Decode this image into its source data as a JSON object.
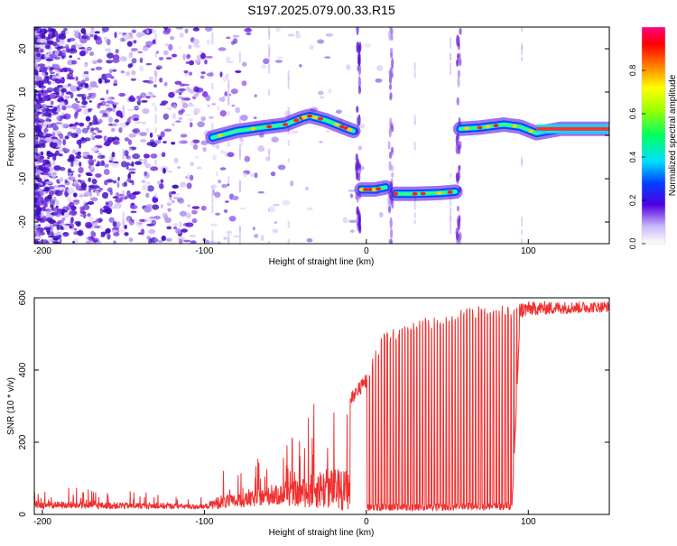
{
  "title": "S197.2025.079.00.33.R15",
  "colors": {
    "snr_line": "#f03030",
    "axis": "#000000",
    "noise_dots": "#7a2ee0"
  },
  "chart_data": [
    {
      "type": "heatmap",
      "xlabel": "Height of straight line (km)",
      "ylabel": "Frequency (Hz)",
      "xlim": [
        -205,
        150
      ],
      "ylim": [
        -25,
        25
      ],
      "x_ticks": [
        -200,
        -100,
        0,
        100
      ],
      "y_ticks": [
        -20,
        -10,
        0,
        10,
        20
      ],
      "colorbar": {
        "label": "Normalized spectral amplitude",
        "range": [
          0.0,
          1.0
        ],
        "ticks": [
          "0.0",
          "0.2",
          "0.4",
          "0.6",
          "0.8"
        ],
        "tick_values": [
          0.0,
          0.2,
          0.4,
          0.6,
          0.8
        ]
      },
      "ridge": {
        "segments": [
          {
            "x": [
              -95,
              -80,
              -65,
              -50,
              -40,
              -35,
              -25,
              -15,
              -8
            ],
            "y": [
              -0.5,
              1.0,
              1.8,
              2.5,
              4.0,
              4.5,
              3.5,
              2.0,
              1.0
            ]
          },
          {
            "x": [
              -3,
              5,
              12
            ],
            "y": [
              -12.5,
              -12.5,
              -12.0
            ]
          },
          {
            "x": [
              18,
              30,
              45,
              55
            ],
            "y": [
              -13.5,
              -13.5,
              -13.3,
              -13.0
            ]
          },
          {
            "x": [
              58,
              70,
              85,
              95,
              105,
              120,
              150
            ],
            "y": [
              1.5,
              1.8,
              2.5,
              2.0,
              0.5,
              1.5,
              1.5
            ]
          }
        ]
      }
    },
    {
      "type": "line",
      "xlabel": "Height of straight line (km)",
      "ylabel": "SNR (10 * v/v)",
      "xlim": [
        -205,
        150
      ],
      "ylim": [
        0,
        600
      ],
      "x_ticks": [
        -200,
        -100,
        0,
        100
      ],
      "y_ticks": [
        0,
        200,
        400,
        600
      ],
      "profile": {
        "x": [
          -205,
          -160,
          -120,
          -100,
          -90,
          -80,
          -70,
          -60,
          -50,
          -40,
          -30,
          -20,
          -10,
          0,
          10,
          20,
          30,
          40,
          50,
          60,
          70,
          80,
          90,
          95,
          100,
          120,
          150
        ],
        "baseline": [
          15,
          15,
          15,
          15,
          15,
          18,
          20,
          25,
          25,
          20,
          15,
          12,
          10,
          8,
          10,
          10,
          10,
          10,
          10,
          12,
          12,
          12,
          12,
          540,
          550,
          555,
          560
        ],
        "peak": [
          80,
          70,
          60,
          50,
          130,
          120,
          150,
          170,
          200,
          240,
          330,
          340,
          340,
          390,
          500,
          520,
          540,
          550,
          560,
          570,
          580,
          580,
          580,
          590,
          590,
          590,
          590
        ]
      }
    }
  ]
}
